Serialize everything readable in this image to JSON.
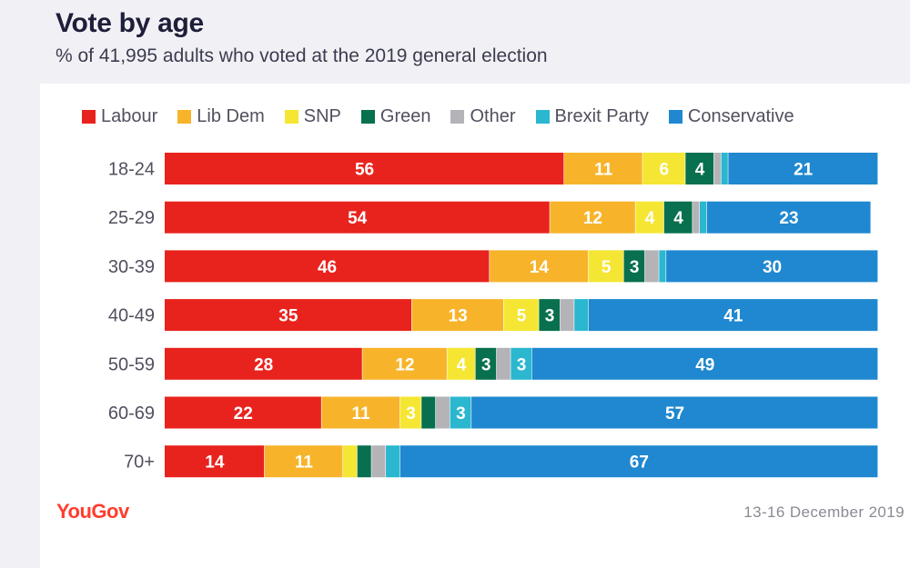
{
  "title": "Vote by age",
  "subtitle": "% of 41,995 adults who voted at the 2019 general election",
  "brand": "YouGov",
  "date_note": "13-16 December 2019",
  "colors": {
    "Labour": "#e8231d",
    "Lib Dem": "#f7b42b",
    "SNP": "#f5e633",
    "Green": "#08704e",
    "Other": "#b4b4b8",
    "Brexit Party": "#2ab7cf",
    "Conservative": "#1f88d0",
    "header_background": "#f1f1f5",
    "brand": "#ff3d2e"
  },
  "chart_data": {
    "type": "bar",
    "orientation": "horizontal",
    "stacked": true,
    "title": "Vote by age",
    "subtitle": "% of 41,995 adults who voted at the 2019 general election",
    "xlabel": "",
    "ylabel": "",
    "xlim": [
      0,
      100
    ],
    "legend_position": "top",
    "categories": [
      "18-24",
      "25-29",
      "30-39",
      "40-49",
      "50-59",
      "60-69",
      "70+"
    ],
    "series": [
      {
        "name": "Labour",
        "values": [
          56,
          54,
          46,
          35,
          28,
          22,
          14
        ],
        "labels": [
          "56",
          "54",
          "46",
          "35",
          "28",
          "22",
          "14"
        ]
      },
      {
        "name": "Lib Dem",
        "values": [
          11,
          12,
          14,
          13,
          12,
          11,
          11
        ],
        "labels": [
          "11",
          "12",
          "14",
          "13",
          "12",
          "11",
          "11"
        ]
      },
      {
        "name": "SNP",
        "values": [
          6,
          4,
          5,
          5,
          4,
          3,
          2
        ],
        "labels": [
          "6",
          "4",
          "5",
          "5",
          "4",
          "3",
          ""
        ]
      },
      {
        "name": "Green",
        "values": [
          4,
          4,
          3,
          3,
          3,
          2,
          2
        ],
        "labels": [
          "4",
          "4",
          "3",
          "3",
          "3",
          "",
          ""
        ]
      },
      {
        "name": "Other",
        "values": [
          1,
          1,
          2,
          2,
          2,
          2,
          2
        ],
        "labels": [
          "",
          "",
          "",
          "",
          "",
          "",
          ""
        ]
      },
      {
        "name": "Brexit Party",
        "values": [
          1,
          1,
          1,
          2,
          3,
          3,
          2
        ],
        "labels": [
          "",
          "",
          "",
          "",
          "3",
          "3",
          ""
        ]
      },
      {
        "name": "Conservative",
        "values": [
          21,
          23,
          30,
          41,
          49,
          57,
          67
        ],
        "labels": [
          "21",
          "23",
          "30",
          "41",
          "49",
          "57",
          "67"
        ]
      }
    ]
  }
}
